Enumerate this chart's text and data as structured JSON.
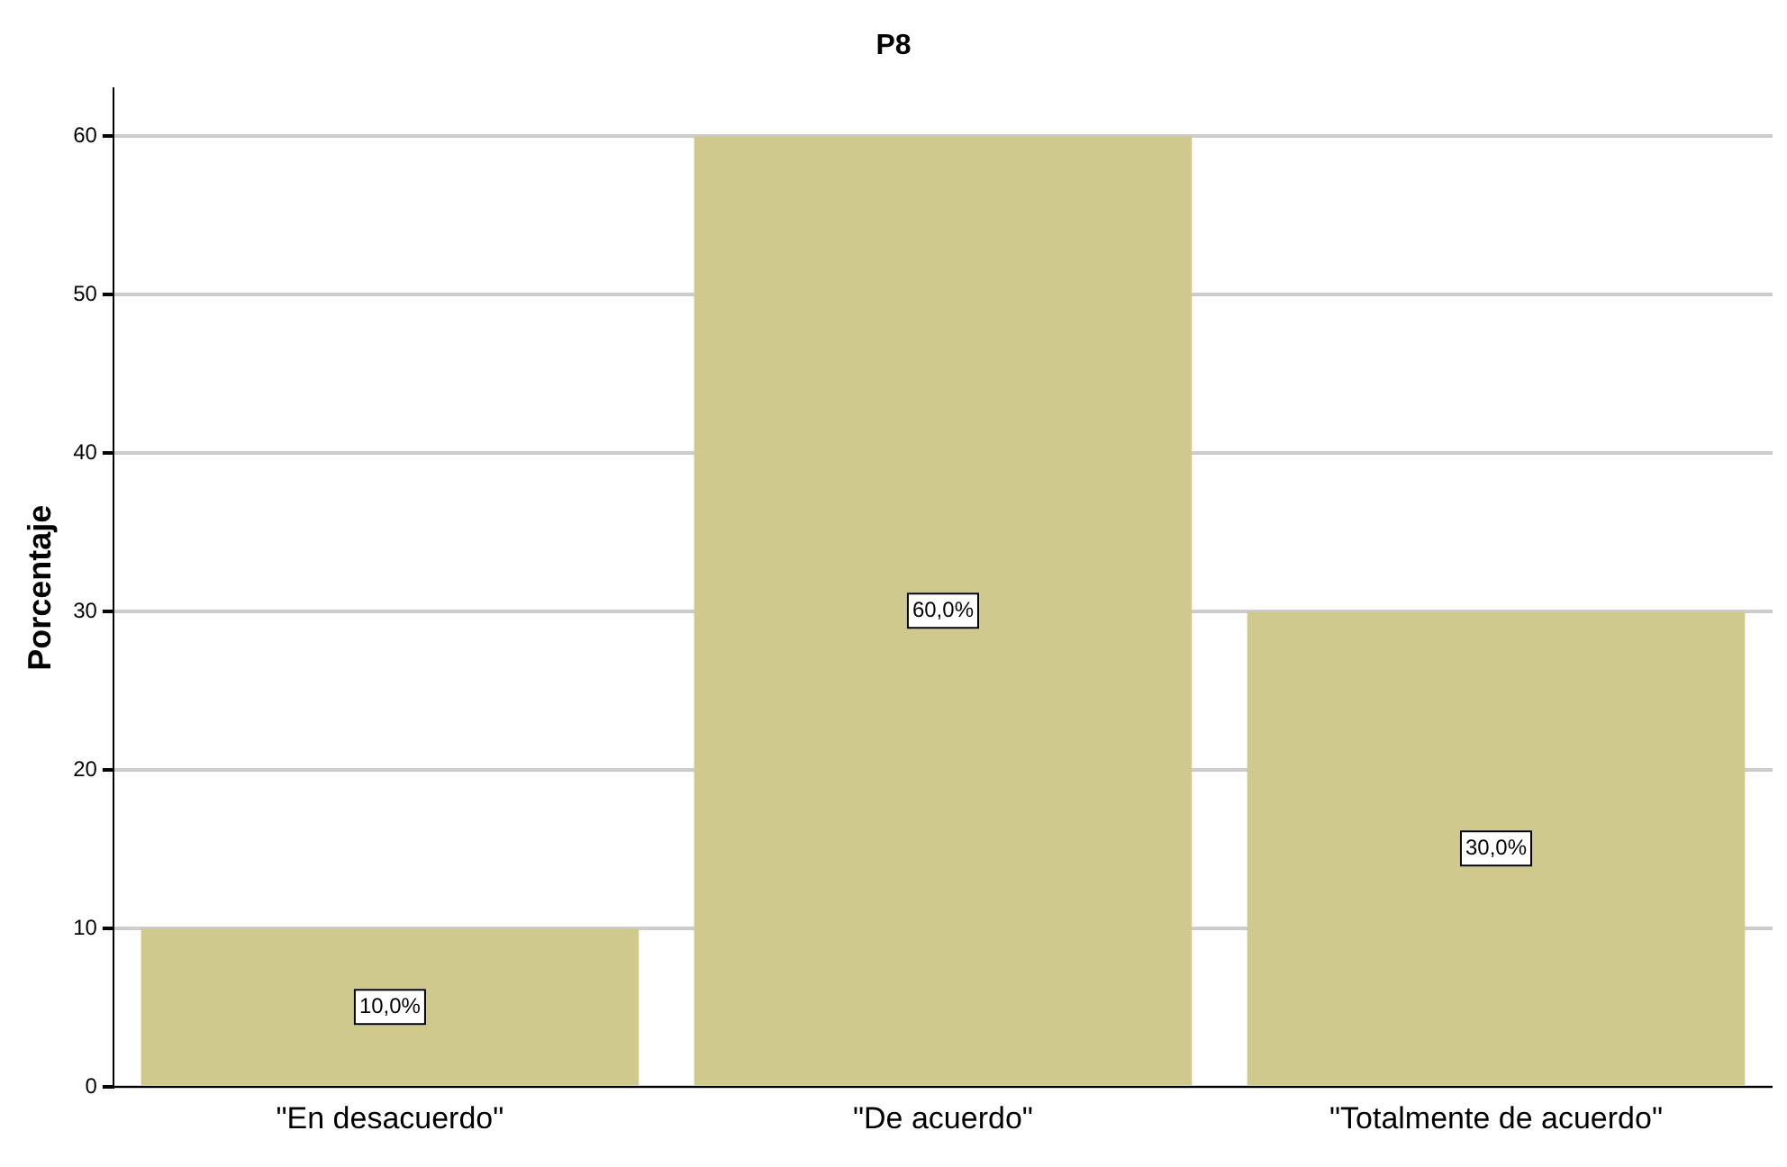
{
  "chart_data": {
    "type": "bar",
    "title": "P8",
    "ylabel": "Porcentaje",
    "categories": [
      "\"En desacuerdo\"",
      "\"De acuerdo\"",
      "\"Totalmente de acuerdo\""
    ],
    "values": [
      10,
      60,
      30
    ],
    "color": "#d0c98e",
    "value_labels": [
      "10,0%",
      "60,0%",
      "30,0%"
    ],
    "ylim": [
      0,
      63
    ],
    "yticks": [
      0,
      10,
      20,
      30,
      40,
      50,
      60
    ],
    "grid": "y",
    "legend": false
  }
}
